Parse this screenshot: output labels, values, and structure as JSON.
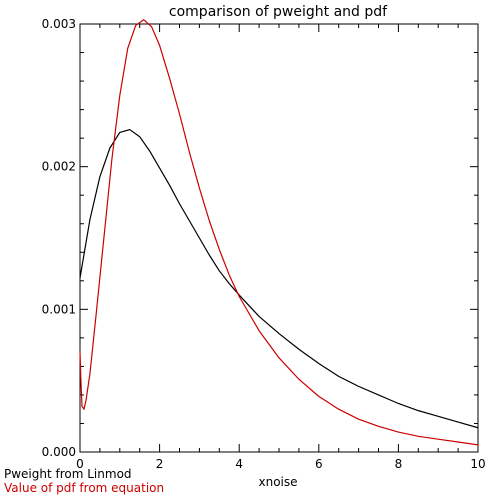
{
  "chart_data": {
    "type": "line",
    "title": "comparison of pweight and pdf",
    "xlabel": "xnoise",
    "ylabel": "",
    "xlim": [
      0,
      10
    ],
    "ylim": [
      0,
      0.003
    ],
    "xticks": [
      0,
      2,
      4,
      6,
      8,
      10
    ],
    "yticks": [
      0.0,
      0.001,
      0.002,
      0.003
    ],
    "xtick_labels": [
      "0",
      "2",
      "4",
      "6",
      "8",
      "10"
    ],
    "ytick_labels": [
      "0.000",
      "0.001",
      "0.002",
      "0.003"
    ],
    "grid": false,
    "legend_placement": "bottom-left",
    "series": [
      {
        "name": "Pweight from Linmod",
        "color": "#000000",
        "x": [
          0,
          0.25,
          0.5,
          0.75,
          1.0,
          1.25,
          1.5,
          1.75,
          2.0,
          2.25,
          2.5,
          2.75,
          3.0,
          3.25,
          3.5,
          3.75,
          4.0,
          4.5,
          5.0,
          5.5,
          6.0,
          6.5,
          7.0,
          7.5,
          8.0,
          8.5,
          9.0,
          9.5,
          10.0
        ],
        "y": [
          0.00122,
          0.00163,
          0.00193,
          0.00213,
          0.00224,
          0.00226,
          0.00221,
          0.00211,
          0.00199,
          0.00187,
          0.00174,
          0.00162,
          0.0015,
          0.00138,
          0.00127,
          0.00118,
          0.0011,
          0.00095,
          0.00083,
          0.00072,
          0.00062,
          0.00053,
          0.00046,
          0.0004,
          0.00034,
          0.00029,
          0.00025,
          0.00021,
          0.00017
        ]
      },
      {
        "name": "Value of pdf from equation",
        "color": "#cc0000",
        "x": [
          0,
          0.02,
          0.05,
          0.1,
          0.15,
          0.25,
          0.4,
          0.6,
          0.8,
          1.0,
          1.2,
          1.4,
          1.6,
          1.8,
          2.0,
          2.25,
          2.5,
          2.75,
          3.0,
          3.25,
          3.5,
          3.75,
          4.0,
          4.5,
          5.0,
          5.5,
          6.0,
          6.5,
          7.0,
          7.5,
          8.0,
          8.5,
          9.0,
          9.5,
          10.0
        ],
        "y": [
          0.0007,
          0.00052,
          0.00032,
          0.0003,
          0.00036,
          0.00055,
          0.00095,
          0.0015,
          0.00205,
          0.0025,
          0.00283,
          0.00299,
          0.00303,
          0.00298,
          0.00285,
          0.00262,
          0.00237,
          0.0021,
          0.00185,
          0.00162,
          0.00142,
          0.00124,
          0.00109,
          0.00085,
          0.00066,
          0.00051,
          0.00039,
          0.0003,
          0.00023,
          0.00018,
          0.00014,
          0.00011,
          9e-05,
          7e-05,
          5e-05
        ]
      }
    ]
  }
}
